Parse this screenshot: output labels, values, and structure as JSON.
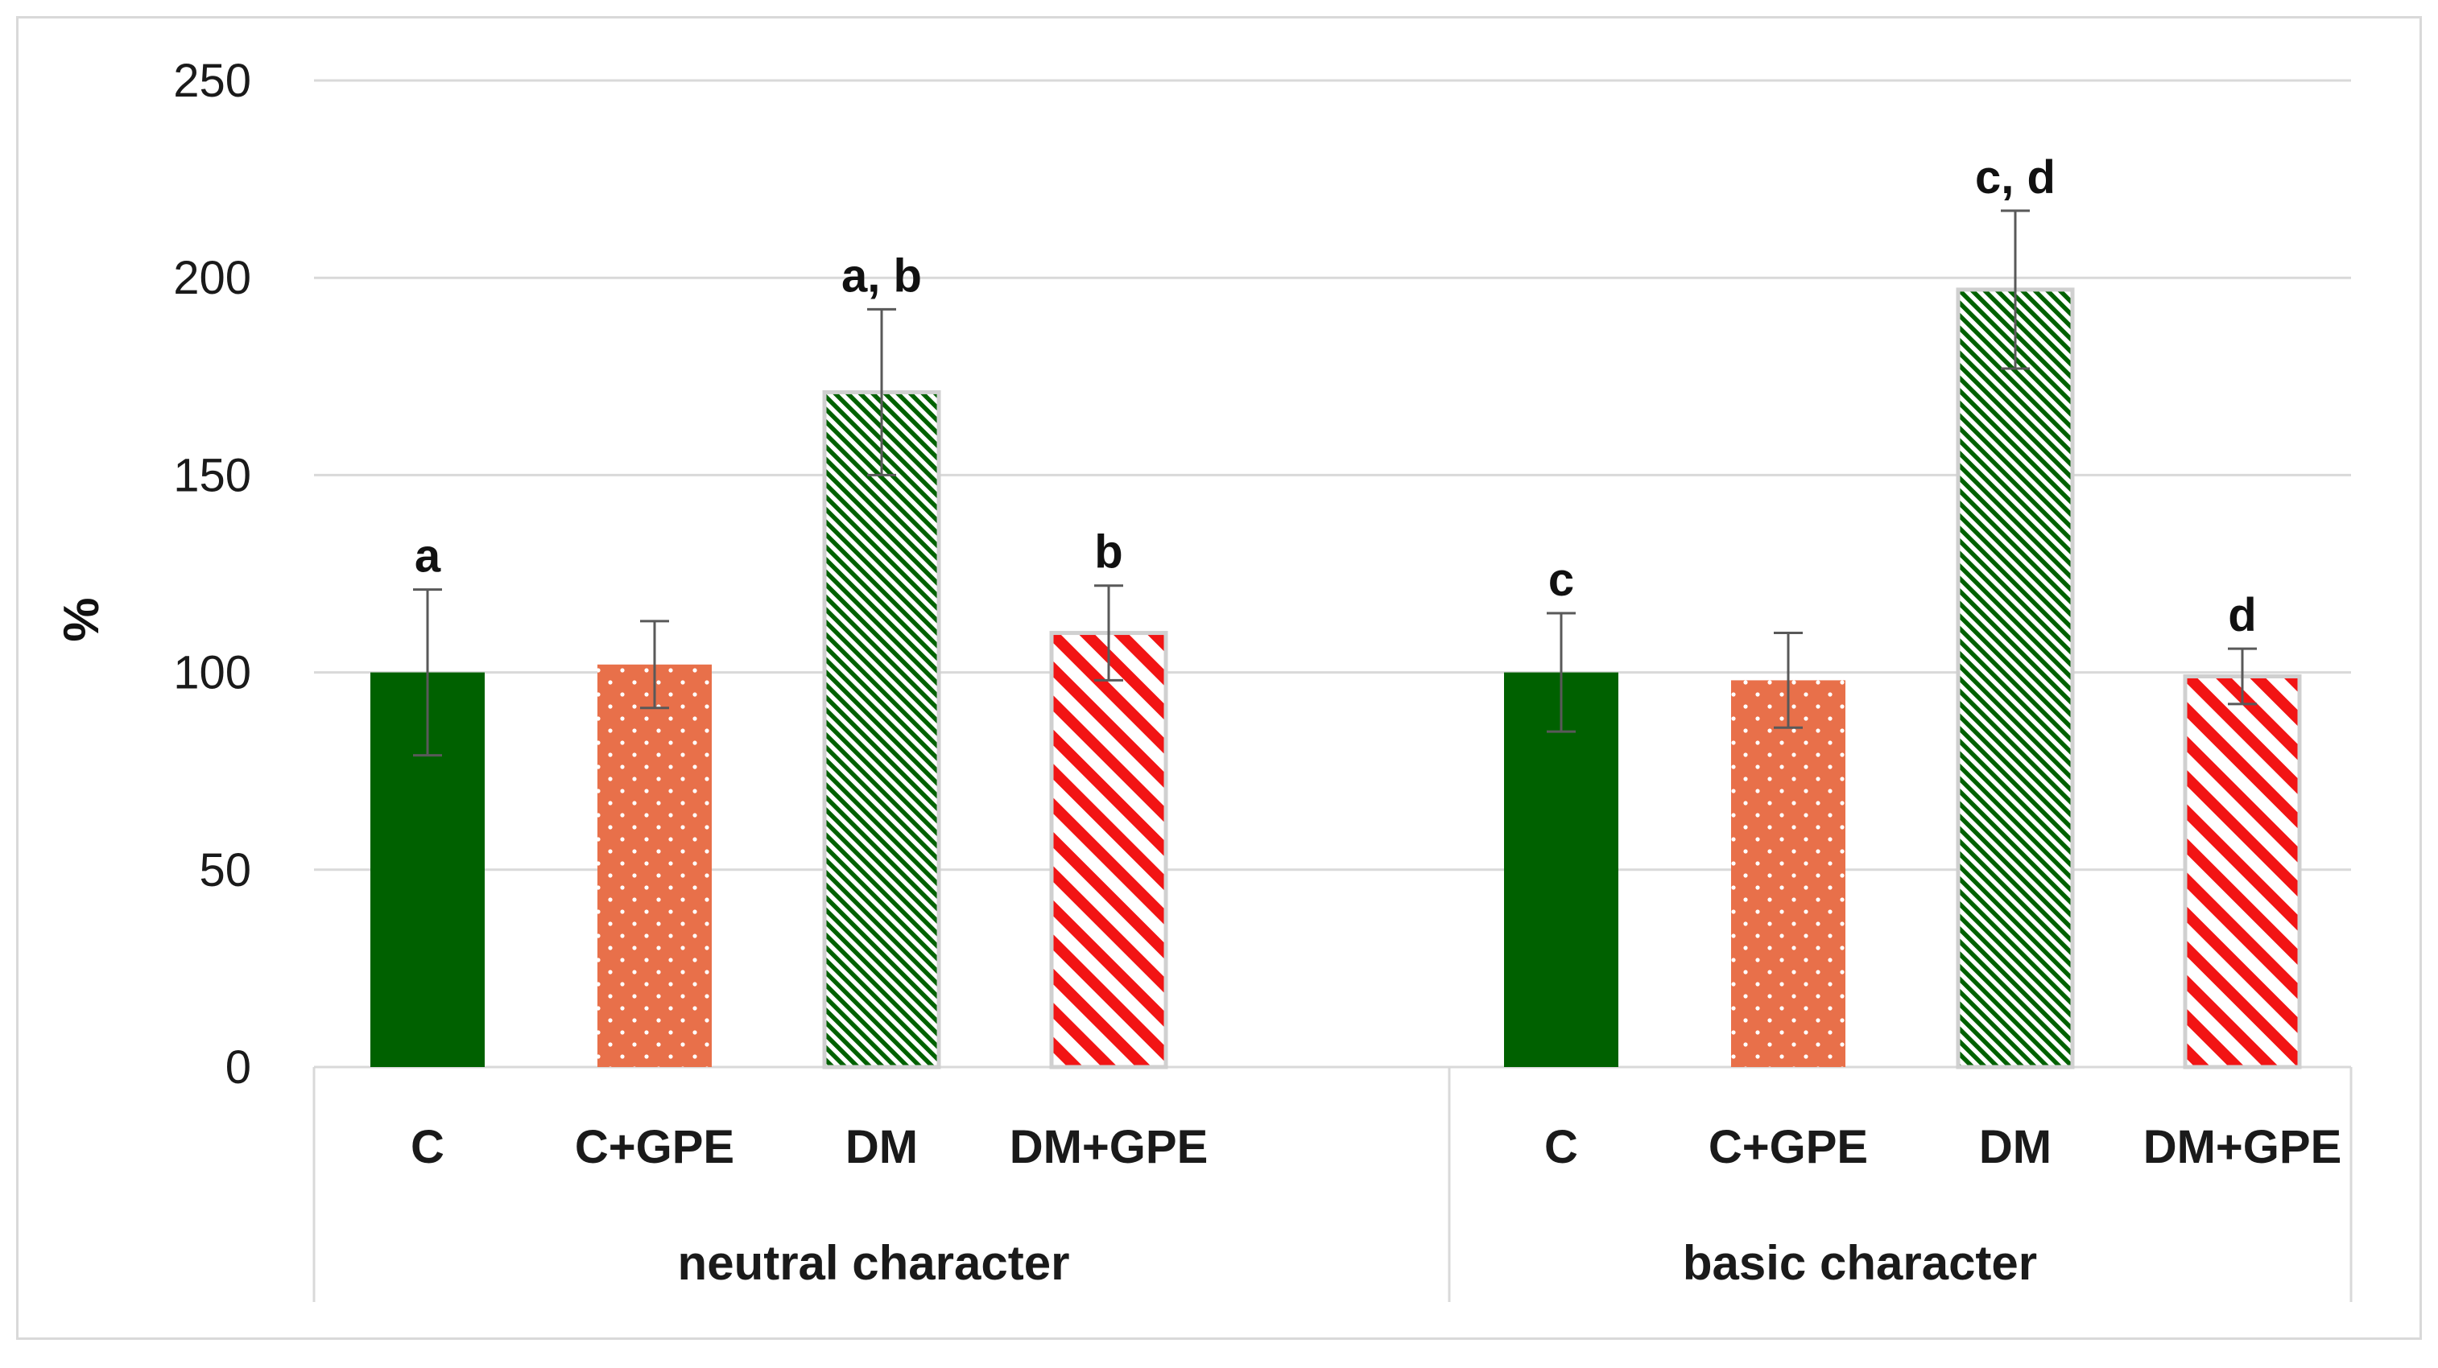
{
  "chart_data": {
    "type": "bar",
    "title": "",
    "xlabel": "",
    "ylabel": "%",
    "ylim": [
      0,
      250
    ],
    "yticks": [
      0,
      50,
      100,
      150,
      200,
      250
    ],
    "grid": true,
    "groups": [
      {
        "name": "neutral character",
        "bars": [
          {
            "category": "C",
            "value": 100,
            "error": 21,
            "sig": "a",
            "style": "solid-green"
          },
          {
            "category": "C+GPE",
            "value": 102,
            "error": 11,
            "sig": "",
            "style": "dotted-orange"
          },
          {
            "category": "DM",
            "value": 171,
            "error": 21,
            "sig": "a, b",
            "style": "hatched-green"
          },
          {
            "category": "DM+GPE",
            "value": 110,
            "error": 12,
            "sig": "b",
            "style": "hatched-red"
          }
        ]
      },
      {
        "name": "basic character",
        "bars": [
          {
            "category": "C",
            "value": 100,
            "error": 15,
            "sig": "c",
            "style": "solid-green"
          },
          {
            "category": "C+GPE",
            "value": 98,
            "error": 12,
            "sig": "",
            "style": "dotted-orange"
          },
          {
            "category": "DM",
            "value": 197,
            "error": 20,
            "sig": "c, d",
            "style": "hatched-green"
          },
          {
            "category": "DM+GPE",
            "value": 99,
            "error": 7,
            "sig": "d",
            "style": "hatched-red"
          }
        ]
      }
    ],
    "colors": {
      "green": "#006100",
      "orange": "#e8704a",
      "red": "#f21414",
      "grid": "#d9d9d9",
      "error_bar": "#595959"
    }
  }
}
